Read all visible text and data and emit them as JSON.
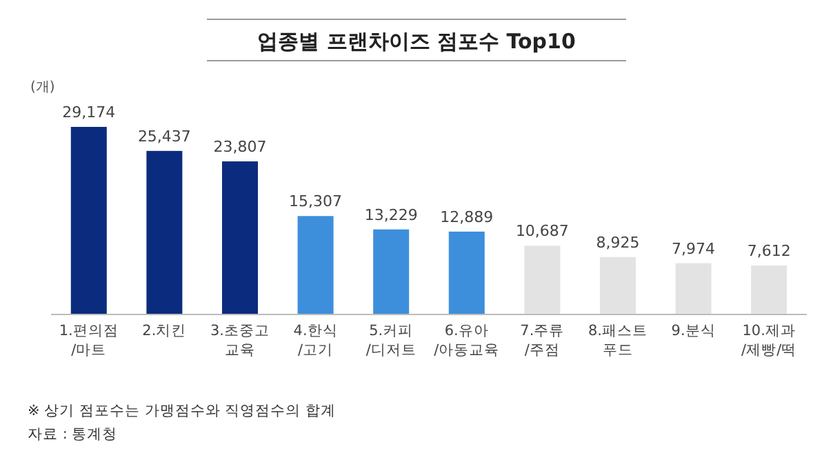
{
  "chart_data": {
    "type": "bar",
    "title": "업종별 프랜차이즈 점포수 Top10",
    "ylabel": "(개)",
    "categories": [
      "1.편의점/마트",
      "2.치킨",
      "3.초중고 교육",
      "4.한식/고기",
      "5.커피/디저트",
      "6.유아/아동교육",
      "7.주류/주점",
      "8.패스트 푸드",
      "9.분식",
      "10.제과/제빵/떡"
    ],
    "values": [
      29174,
      25437,
      23807,
      15307,
      13229,
      12889,
      10687,
      8925,
      7974,
      7612
    ],
    "colors": [
      "#0b2c7e",
      "#0b2c7e",
      "#0b2c7e",
      "#3d8fdc",
      "#3d8fdc",
      "#3d8fdc",
      "#e3e3e3",
      "#e3e3e3",
      "#e3e3e3",
      "#e3e3e3"
    ],
    "value_labels": [
      "29,174",
      "25,437",
      "23,807",
      "15,307",
      "13,229",
      "12,889",
      "10,687",
      "8,925",
      "7,974",
      "7,612"
    ],
    "annotations": [
      "※ 상기 점포수는 가맹점수와 직영점수의 합계",
      "자료 : 통계청"
    ]
  }
}
